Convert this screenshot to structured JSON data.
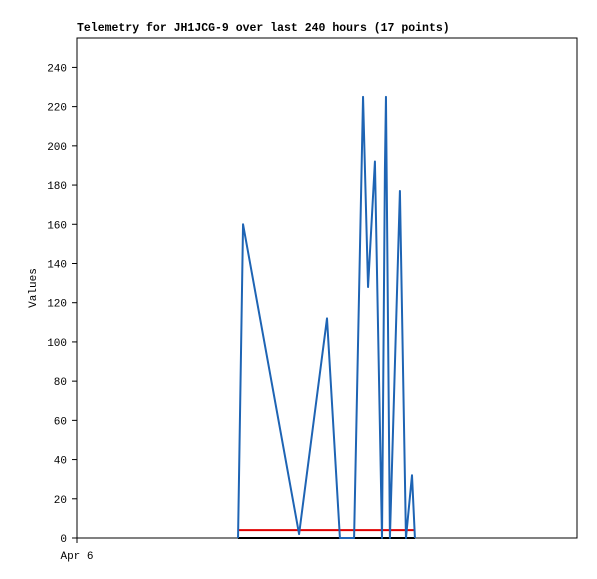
{
  "chart_data": {
    "type": "line",
    "title": "Telemetry for JH1JCG-9 over last 240 hours (17 points)",
    "y_label": "Values",
    "xlim": [
      0,
      240
    ],
    "xticks": [
      {
        "value": 0,
        "label": "Apr 6"
      }
    ],
    "ylim": [
      0,
      255
    ],
    "yticks": [
      0,
      20,
      40,
      60,
      80,
      100,
      120,
      140,
      160,
      180,
      200,
      220,
      240
    ],
    "series": [
      {
        "color": "#000000",
        "x": [
          77.3,
          162.2
        ],
        "values": [
          0,
          0
        ]
      },
      {
        "color": "#e00000",
        "x": [
          77.3,
          162.2
        ],
        "values": [
          4,
          4
        ]
      },
      {
        "color": "#1e64b4",
        "x": [
          77.3,
          79.7,
          106.6,
          120,
          126.2,
          133,
          137.3,
          139.7,
          143,
          146.4,
          147.8,
          148.3,
          150.2,
          155,
          157.9,
          160.8,
          162.2
        ],
        "values": [
          0,
          160,
          2,
          112,
          0,
          0,
          225,
          128,
          192,
          0,
          188,
          225,
          0,
          177,
          0,
          32,
          0
        ]
      }
    ]
  }
}
